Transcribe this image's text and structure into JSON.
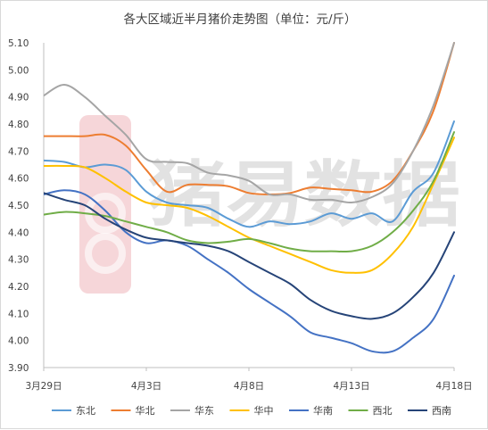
{
  "chart_data": {
    "type": "line",
    "title": "各大区域近半月猪价走势图（单位：元/斤）",
    "xlabel": "",
    "ylabel": "",
    "ylim": [
      3.9,
      5.1
    ],
    "yticks": [
      "3.90",
      "4.00",
      "4.10",
      "4.20",
      "4.30",
      "4.40",
      "4.50",
      "4.60",
      "4.70",
      "4.80",
      "4.90",
      "5.00",
      "5.10"
    ],
    "x_tick_labels": [
      "3月29日",
      "4月3日",
      "4月8日",
      "4月13日",
      "4月18日"
    ],
    "x_tick_index": [
      0,
      5,
      10,
      15,
      20
    ],
    "x_count": 21,
    "grid": false,
    "legend_position": "bottom",
    "watermark": "猪易数据",
    "series": [
      {
        "name": "东北",
        "color": "#5b9bd5",
        "values": [
          4.665,
          4.66,
          4.64,
          4.65,
          4.63,
          4.55,
          4.51,
          4.5,
          4.49,
          4.45,
          4.42,
          4.44,
          4.43,
          4.44,
          4.47,
          4.45,
          4.47,
          4.44,
          4.55,
          4.62,
          4.81
        ]
      },
      {
        "name": "华北",
        "color": "#ed7d31",
        "values": [
          4.755,
          4.755,
          4.755,
          4.76,
          4.72,
          4.63,
          4.55,
          4.575,
          4.575,
          4.57,
          4.545,
          4.54,
          4.545,
          4.565,
          4.56,
          4.555,
          4.55,
          4.59,
          4.7,
          4.85,
          5.1
        ]
      },
      {
        "name": "华东",
        "color": "#a5a5a5",
        "values": [
          4.905,
          4.945,
          4.9,
          4.83,
          4.76,
          4.67,
          4.66,
          4.655,
          4.62,
          4.61,
          4.59,
          4.54,
          4.54,
          4.52,
          4.52,
          4.51,
          4.53,
          4.58,
          4.7,
          4.87,
          5.1
        ]
      },
      {
        "name": "华中",
        "color": "#ffc000",
        "values": [
          4.645,
          4.645,
          4.64,
          4.6,
          4.55,
          4.51,
          4.5,
          4.49,
          4.46,
          4.42,
          4.38,
          4.35,
          4.32,
          4.29,
          4.26,
          4.25,
          4.26,
          4.32,
          4.42,
          4.58,
          4.75
        ]
      },
      {
        "name": "华南",
        "color": "#4472c4",
        "values": [
          4.54,
          4.555,
          4.54,
          4.48,
          4.4,
          4.36,
          4.37,
          4.35,
          4.3,
          4.25,
          4.19,
          4.14,
          4.09,
          4.03,
          4.01,
          3.99,
          3.96,
          3.96,
          4.01,
          4.08,
          4.24
        ]
      },
      {
        "name": "西北",
        "color": "#70ad47",
        "values": [
          4.465,
          4.475,
          4.47,
          4.46,
          4.44,
          4.42,
          4.4,
          4.37,
          4.36,
          4.365,
          4.375,
          4.36,
          4.34,
          4.33,
          4.33,
          4.33,
          4.35,
          4.4,
          4.48,
          4.59,
          4.77
        ]
      },
      {
        "name": "西南",
        "color": "#264478",
        "values": [
          4.545,
          4.52,
          4.5,
          4.45,
          4.41,
          4.38,
          4.37,
          4.36,
          4.35,
          4.33,
          4.29,
          4.25,
          4.21,
          4.15,
          4.11,
          4.09,
          4.08,
          4.1,
          4.16,
          4.25,
          4.4
        ]
      }
    ]
  }
}
